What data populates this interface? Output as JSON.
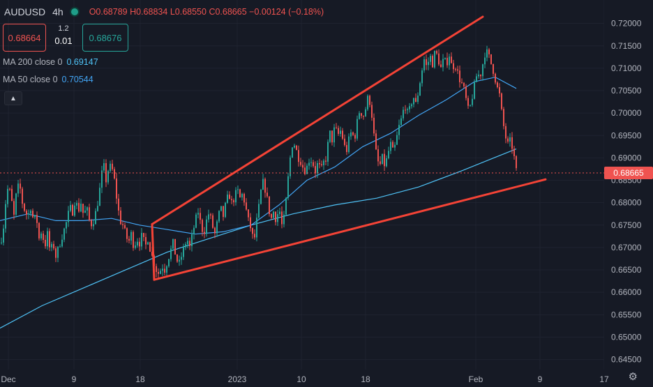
{
  "header": {
    "symbol": "AUDUSD",
    "timeframe": "4h",
    "open": "O0.68789",
    "high": "H0.68834",
    "low": "L0.68550",
    "close": "C0.68665",
    "change": "−0.00124 (−0.18%)"
  },
  "trade": {
    "bid": "0.68664",
    "ask": "0.68676",
    "spread": "1.2",
    "quantity": "0.01"
  },
  "indicators": {
    "ma200_label": "MA 200 close 0",
    "ma200_value": "0.69147",
    "ma50_label": "MA 50 close 0",
    "ma50_value": "0.70544"
  },
  "colors": {
    "up": "#26a69a",
    "down": "#ef5350",
    "ma200": "#4fc3f7",
    "ma50": "#42a5f5",
    "trendline": "#f44336",
    "current_price_bg": "#ef5350"
  },
  "chart_data": {
    "type": "candlestick",
    "current_price": "0.68665",
    "ylim": [
      0.644,
      0.7215
    ],
    "y_ticks": [
      "0.72000",
      "0.71500",
      "0.71000",
      "0.70500",
      "0.70000",
      "0.69500",
      "0.69000",
      "0.68500",
      "0.68000",
      "0.67500",
      "0.67000",
      "0.66500",
      "0.66000",
      "0.65500",
      "0.65000",
      "0.64500"
    ],
    "x_ticks": [
      "Dec",
      "9",
      "18",
      "2023",
      "10",
      "18",
      "Feb",
      "9",
      "17"
    ],
    "close_path": [
      [
        0,
        0.671
      ],
      [
        4,
        0.673
      ],
      [
        8,
        0.68
      ],
      [
        12,
        0.684
      ],
      [
        16,
        0.681
      ],
      [
        20,
        0.677
      ],
      [
        24,
        0.683
      ],
      [
        28,
        0.684
      ],
      [
        32,
        0.68
      ],
      [
        36,
        0.678
      ],
      [
        40,
        0.677
      ],
      [
        44,
        0.679
      ],
      [
        48,
        0.676
      ],
      [
        52,
        0.677
      ],
      [
        56,
        0.672
      ],
      [
        60,
        0.674
      ],
      [
        64,
        0.67
      ],
      [
        68,
        0.673
      ],
      [
        72,
        0.669
      ],
      [
        76,
        0.671
      ],
      [
        80,
        0.668
      ],
      [
        84,
        0.67
      ],
      [
        88,
        0.672
      ],
      [
        92,
        0.674
      ],
      [
        96,
        0.676
      ],
      [
        100,
        0.679
      ],
      [
        104,
        0.678
      ],
      [
        108,
        0.681
      ],
      [
        112,
        0.678
      ],
      [
        116,
        0.68
      ],
      [
        120,
        0.677
      ],
      [
        124,
        0.679
      ],
      [
        128,
        0.676
      ],
      [
        132,
        0.675
      ],
      [
        136,
        0.677
      ],
      [
        140,
        0.68
      ],
      [
        144,
        0.684
      ],
      [
        148,
        0.689
      ],
      [
        152,
        0.685
      ],
      [
        156,
        0.688
      ],
      [
        160,
        0.688
      ],
      [
        164,
        0.685
      ],
      [
        168,
        0.68
      ],
      [
        172,
        0.676
      ],
      [
        176,
        0.675
      ],
      [
        180,
        0.673
      ],
      [
        184,
        0.671
      ],
      [
        188,
        0.673
      ],
      [
        192,
        0.67
      ],
      [
        196,
        0.672
      ],
      [
        200,
        0.671
      ],
      [
        204,
        0.673
      ],
      [
        208,
        0.67
      ],
      [
        212,
        0.672
      ],
      [
        216,
        0.669
      ],
      [
        220,
        0.667
      ],
      [
        224,
        0.665
      ],
      [
        228,
        0.664
      ],
      [
        232,
        0.666
      ],
      [
        236,
        0.665
      ],
      [
        240,
        0.667
      ],
      [
        244,
        0.669
      ],
      [
        248,
        0.671
      ],
      [
        252,
        0.668
      ],
      [
        256,
        0.666
      ],
      [
        260,
        0.668
      ],
      [
        264,
        0.67
      ],
      [
        268,
        0.672
      ],
      [
        272,
        0.67
      ],
      [
        276,
        0.673
      ],
      [
        280,
        0.676
      ],
      [
        284,
        0.678
      ],
      [
        288,
        0.675
      ],
      [
        292,
        0.673
      ],
      [
        296,
        0.676
      ],
      [
        300,
        0.678
      ],
      [
        304,
        0.675
      ],
      [
        308,
        0.673
      ],
      [
        312,
        0.676
      ],
      [
        316,
        0.679
      ],
      [
        320,
        0.677
      ],
      [
        324,
        0.68
      ],
      [
        328,
        0.682
      ],
      [
        332,
        0.68
      ],
      [
        336,
        0.681
      ],
      [
        340,
        0.683
      ],
      [
        344,
        0.681
      ],
      [
        348,
        0.682
      ],
      [
        352,
        0.679
      ],
      [
        356,
        0.676
      ],
      [
        360,
        0.674
      ],
      [
        364,
        0.671
      ],
      [
        368,
        0.676
      ],
      [
        372,
        0.68
      ],
      [
        376,
        0.685
      ],
      [
        380,
        0.683
      ],
      [
        384,
        0.68
      ],
      [
        388,
        0.676
      ],
      [
        392,
        0.678
      ],
      [
        396,
        0.676
      ],
      [
        400,
        0.679
      ],
      [
        404,
        0.675
      ],
      [
        408,
        0.677
      ],
      [
        412,
        0.684
      ],
      [
        416,
        0.69
      ],
      [
        420,
        0.694
      ],
      [
        424,
        0.692
      ],
      [
        428,
        0.69
      ],
      [
        432,
        0.689
      ],
      [
        436,
        0.687
      ],
      [
        440,
        0.688
      ],
      [
        444,
        0.69
      ],
      [
        448,
        0.689
      ],
      [
        452,
        0.687
      ],
      [
        456,
        0.689
      ],
      [
        460,
        0.687
      ],
      [
        464,
        0.689
      ],
      [
        468,
        0.69
      ],
      [
        472,
        0.696
      ],
      [
        476,
        0.694
      ],
      [
        480,
        0.697
      ],
      [
        484,
        0.695
      ],
      [
        488,
        0.696
      ],
      [
        492,
        0.694
      ],
      [
        496,
        0.691
      ],
      [
        500,
        0.694
      ],
      [
        504,
        0.696
      ],
      [
        508,
        0.694
      ],
      [
        512,
        0.698
      ],
      [
        516,
        0.701
      ],
      [
        520,
        0.699
      ],
      [
        524,
        0.701
      ],
      [
        528,
        0.704
      ],
      [
        532,
        0.701
      ],
      [
        536,
        0.695
      ],
      [
        540,
        0.69
      ],
      [
        544,
        0.688
      ],
      [
        548,
        0.69
      ],
      [
        552,
        0.688
      ],
      [
        556,
        0.691
      ],
      [
        560,
        0.693
      ],
      [
        564,
        0.691
      ],
      [
        568,
        0.694
      ],
      [
        572,
        0.697
      ],
      [
        576,
        0.699
      ],
      [
        580,
        0.702
      ],
      [
        584,
        0.7
      ],
      [
        588,
        0.701
      ],
      [
        592,
        0.704
      ],
      [
        596,
        0.702
      ],
      [
        600,
        0.705
      ],
      [
        604,
        0.709
      ],
      [
        608,
        0.712
      ],
      [
        612,
        0.71
      ],
      [
        616,
        0.713
      ],
      [
        620,
        0.711
      ],
      [
        624,
        0.714
      ],
      [
        628,
        0.712
      ],
      [
        632,
        0.71
      ],
      [
        636,
        0.712
      ],
      [
        640,
        0.711
      ],
      [
        644,
        0.713
      ],
      [
        648,
        0.71
      ],
      [
        652,
        0.711
      ],
      [
        656,
        0.709
      ],
      [
        660,
        0.707
      ],
      [
        664,
        0.706
      ],
      [
        668,
        0.703
      ],
      [
        672,
        0.7
      ],
      [
        676,
        0.703
      ],
      [
        680,
        0.706
      ],
      [
        684,
        0.709
      ],
      [
        688,
        0.708
      ],
      [
        692,
        0.711
      ],
      [
        696,
        0.714
      ],
      [
        700,
        0.713
      ],
      [
        704,
        0.711
      ],
      [
        708,
        0.709
      ],
      [
        712,
        0.706
      ],
      [
        716,
        0.704
      ],
      [
        720,
        0.699
      ],
      [
        724,
        0.695
      ],
      [
        728,
        0.693
      ],
      [
        732,
        0.694
      ],
      [
        736,
        0.691
      ],
      [
        740,
        0.687
      ]
    ],
    "ma200": [
      [
        0,
        0.652
      ],
      [
        60,
        0.657
      ],
      [
        120,
        0.661
      ],
      [
        180,
        0.665
      ],
      [
        240,
        0.669
      ],
      [
        300,
        0.672
      ],
      [
        360,
        0.675
      ],
      [
        420,
        0.6775
      ],
      [
        480,
        0.6795
      ],
      [
        540,
        0.681
      ],
      [
        600,
        0.6835
      ],
      [
        660,
        0.687
      ],
      [
        700,
        0.6895
      ],
      [
        740,
        0.692
      ]
    ],
    "ma50": [
      [
        0,
        0.676
      ],
      [
        40,
        0.6775
      ],
      [
        80,
        0.676
      ],
      [
        120,
        0.676
      ],
      [
        160,
        0.6765
      ],
      [
        200,
        0.675
      ],
      [
        240,
        0.674
      ],
      [
        280,
        0.673
      ],
      [
        320,
        0.6735
      ],
      [
        360,
        0.675
      ],
      [
        400,
        0.6795
      ],
      [
        440,
        0.685
      ],
      [
        480,
        0.688
      ],
      [
        520,
        0.6925
      ],
      [
        560,
        0.6955
      ],
      [
        600,
        0.6995
      ],
      [
        640,
        0.703
      ],
      [
        680,
        0.707
      ],
      [
        710,
        0.708
      ],
      [
        740,
        0.7055
      ]
    ],
    "trendlines": [
      {
        "from": [
          218,
          0.6752
        ],
        "to": [
          692,
          0.7215
        ]
      },
      {
        "from": [
          221,
          0.6628
        ],
        "to": [
          782,
          0.6852
        ]
      },
      {
        "from": [
          218,
          0.6752
        ],
        "to": [
          221,
          0.6628
        ]
      }
    ]
  }
}
